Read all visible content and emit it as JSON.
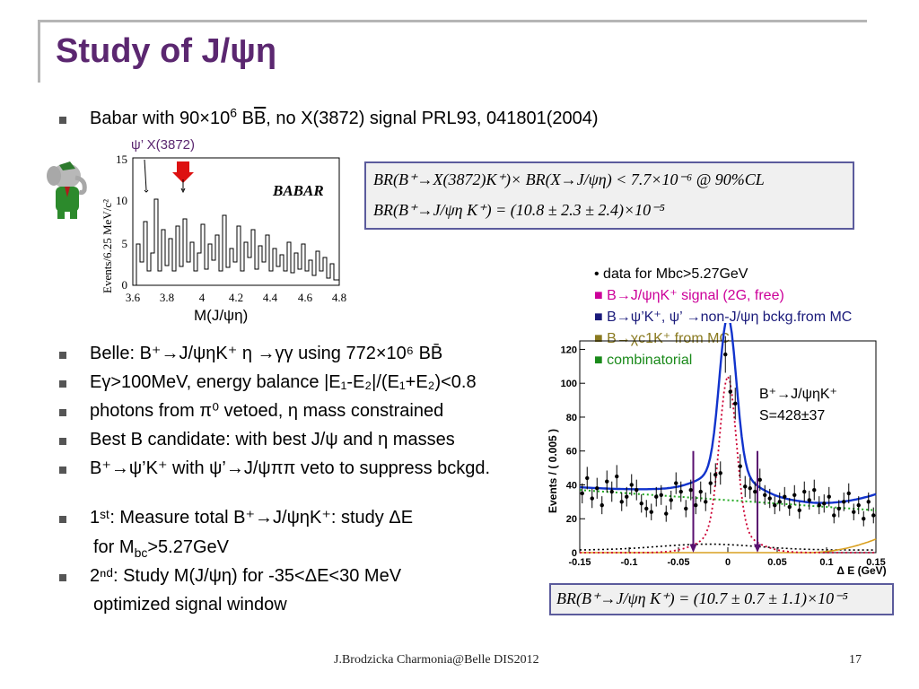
{
  "title": "Study of J/ψη",
  "babar": {
    "bullet_prefix": "Babar with 90×10",
    "bullet_exp": "6",
    "bullet_b": " B",
    "bullet_bbar": "B",
    "bullet_suffix": ", no X(3872) signal  PRL93, 041801(2004)",
    "plot_label_psi": "ψ’  X(3872)",
    "plot_ylabel": "Events/6.25 MeV/c²",
    "plot_logo": "BABAR",
    "plot_xlabel": "M(J/ψη)",
    "plot_xticks": [
      "3.6",
      "3.8",
      "4",
      "4.2",
      "4.4",
      "4.6",
      "4.8"
    ],
    "plot_yticks": [
      "0",
      "5",
      "10",
      "15"
    ]
  },
  "formula1": {
    "line1": "BR(B⁺→X(3872)K⁺)× BR(X→J/ψη) < 7.7×10⁻⁶ @ 90%CL",
    "line2": "BR(B⁺→J/ψη K⁺) = (10.8 ± 2.3 ± 2.4)×10⁻⁵"
  },
  "belle": {
    "b1": "Belle: B⁺→J/ψηK⁺ η →γγ using 772×10⁶ BB̄",
    "b2": "Eγ>100MeV, energy balance |E₁-E₂|/(E₁+E₂)<0.8",
    "b3": "photons from π⁰ vetoed, η mass constrained",
    "b4": "Best B candidate: with best J/ψ and η masses",
    "b5": "B⁺→ψ’K⁺ with ψ’→J/ψππ veto to suppress bckgd.",
    "b6": "1ˢᵗ: Measure total B⁺→J/ψηK⁺: study ΔE",
    "b6b": "for M",
    "b6b_sub": "bc",
    "b6b_rest": ">5.27GeV",
    "b7": "2ⁿᵈ: Study M(J/ψη) for -35<ΔE<30 MeV",
    "b7b": "optimized signal window"
  },
  "legend": {
    "l1": "• data for Mbc>5.27GeV",
    "l2": "■ B→J/ψηK⁺ signal (2G, free)",
    "l3": "■ B→ψ’K⁺, ψ’ →non-J/ψη bckg.from MC",
    "l4": "■ B→χc1K⁺ from MC",
    "l5": "■ combinatorial",
    "colors": {
      "l1": "#000000",
      "l2": "#cc0099",
      "l3": "#1a1a7a",
      "l4": "#8a7a20",
      "l5": "#1a8a1a"
    }
  },
  "fit_plot": {
    "ylabel": "Events / ( 0.005 )",
    "xlabel": "Δ E (GeV)",
    "xticks": [
      "-0.15",
      "-0.1",
      "-0.05",
      "0",
      "0.05",
      "0.1",
      "0.15"
    ],
    "yticks": [
      "0",
      "20",
      "40",
      "60",
      "80",
      "100",
      "120"
    ],
    "annot1": "B⁺→J/ψηK⁺",
    "annot2": "S=428±37"
  },
  "formula2": {
    "line": "BR(B⁺→J/ψη K⁺) = (10.7 ± 0.7 ± 1.1)×10⁻⁵"
  },
  "footer": {
    "left": "J.Brodzicka  Charmonia@Belle   DIS2012",
    "page": "17"
  },
  "chart_data": {
    "type": "scatter",
    "title": "",
    "xlabel": "Δ E (GeV)",
    "ylabel": "Events / ( 0.005 )",
    "xlim": [
      -0.15,
      0.15
    ],
    "ylim": [
      0,
      125
    ],
    "series": [
      {
        "name": "data for Mbc>5.27GeV",
        "x": [
          -0.1475,
          -0.1425,
          -0.1375,
          -0.1325,
          -0.1275,
          -0.1225,
          -0.1175,
          -0.1125,
          -0.1075,
          -0.1025,
          -0.0975,
          -0.0925,
          -0.0875,
          -0.0825,
          -0.0775,
          -0.0725,
          -0.0675,
          -0.0625,
          -0.0575,
          -0.0525,
          -0.0475,
          -0.0425,
          -0.0375,
          -0.0325,
          -0.0275,
          -0.0225,
          -0.0175,
          -0.0125,
          -0.0075,
          -0.0025,
          0.0025,
          0.0075,
          0.0125,
          0.0175,
          0.0225,
          0.0275,
          0.0325,
          0.0375,
          0.0425,
          0.0475,
          0.0525,
          0.0575,
          0.0625,
          0.0675,
          0.0725,
          0.0775,
          0.0825,
          0.0875,
          0.0925,
          0.0975,
          0.1025,
          0.1075,
          0.1125,
          0.1175,
          0.1225,
          0.1275,
          0.1325,
          0.1375,
          0.1425,
          0.1475
        ],
        "y": [
          35,
          44,
          32,
          38,
          28,
          42,
          36,
          45,
          30,
          33,
          40,
          37,
          29,
          26,
          24,
          33,
          34,
          23,
          31,
          41,
          36,
          26,
          37,
          28,
          36,
          30,
          41,
          46,
          47,
          117,
          95,
          88,
          51,
          39,
          38,
          36,
          43,
          34,
          32,
          28,
          30,
          33,
          27,
          34,
          25,
          36,
          31,
          37,
          28,
          29,
          33,
          22,
          26,
          30,
          35,
          24,
          28,
          20,
          30,
          22
        ]
      },
      {
        "name": "B→J/ψηK⁺ signal (2G, free)",
        "style": "line"
      },
      {
        "name": "B→ψ’K⁺, ψ’ →non-J/ψη bckg.from MC",
        "style": "line"
      },
      {
        "name": "B→χc1K⁺ from MC",
        "style": "line"
      },
      {
        "name": "combinatorial",
        "style": "line"
      }
    ]
  }
}
